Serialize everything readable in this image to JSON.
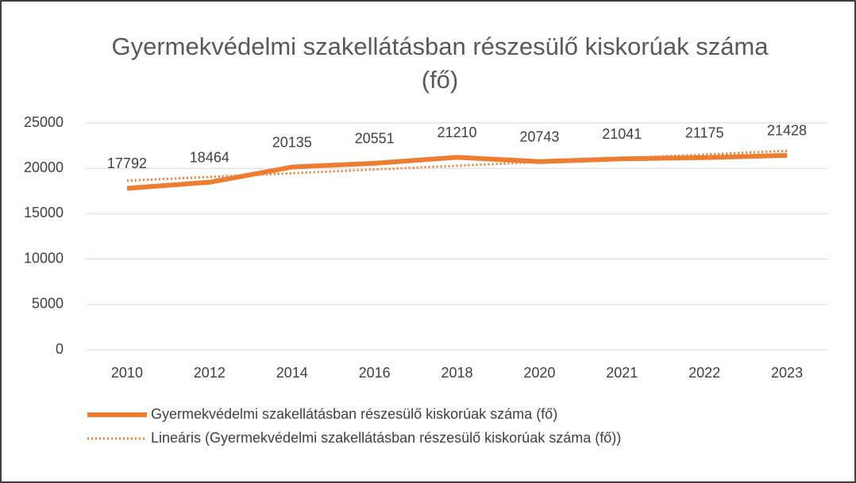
{
  "chart_data": {
    "type": "line",
    "title": "Gyermekvédelmi szakellátásban részesülő kiskorúak száma (fő)",
    "categories": [
      "2010",
      "2012",
      "2014",
      "2016",
      "2018",
      "2020",
      "2021",
      "2022",
      "2023"
    ],
    "series": [
      {
        "name": "Gyermekvédelmi szakellátásban részesülő kiskorúak száma (fő)",
        "color": "#ed7d31",
        "style": "solid",
        "values": [
          17792,
          18464,
          20135,
          20551,
          21210,
          20743,
          21041,
          21175,
          21428
        ],
        "data_labels": true
      },
      {
        "name": "Lineáris (Gyermekvédelmi szakellátásban részesülő kiskorúak száma (fő))",
        "color": "#ed7d31",
        "style": "dotted",
        "values": [
          18637,
          19048,
          19459,
          19871,
          20282,
          20693,
          21105,
          21516,
          21928
        ],
        "data_labels": false
      }
    ],
    "ylim": [
      0,
      25000
    ],
    "yticks": [
      0,
      5000,
      10000,
      15000,
      20000,
      25000
    ],
    "grid": true,
    "legend": "bottom"
  }
}
